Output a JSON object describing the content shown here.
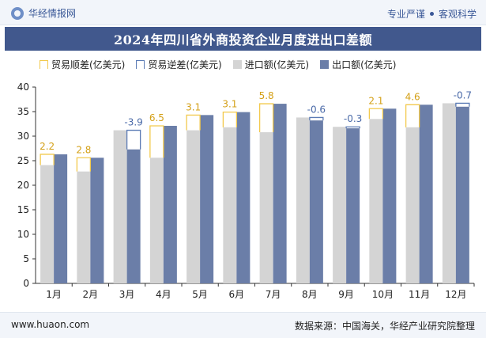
{
  "header": {
    "brand_name": "华经情报网",
    "tag_left": "专业严谨",
    "tag_right": "客观科学"
  },
  "footer": {
    "site": "www.huaon.com",
    "source": "数据来源：中国海关，华经产业研究院整理"
  },
  "colors": {
    "surplus": "#f2c94c",
    "deficit": "#5b7bb5",
    "import": "#d4d4d4",
    "export": "#6b7ea8",
    "title_bg": "#41588d"
  },
  "chart_data": {
    "type": "bar",
    "title": "2024年四川省外商投资企业月度进出口差额",
    "categories": [
      "1月",
      "2月",
      "3月",
      "4月",
      "5月",
      "6月",
      "7月",
      "8月",
      "9月",
      "10月",
      "11月",
      "12月"
    ],
    "series": [
      {
        "name": "进口额(亿美元)",
        "values": [
          24.1,
          22.8,
          31.2,
          25.6,
          31.2,
          31.8,
          30.8,
          33.8,
          31.9,
          33.5,
          31.8,
          36.7
        ]
      },
      {
        "name": "出口额(亿美元)",
        "values": [
          26.3,
          25.6,
          27.3,
          32.1,
          34.3,
          34.9,
          36.6,
          33.2,
          31.6,
          35.6,
          36.4,
          36.0
        ]
      }
    ],
    "balance": {
      "surplus_name": "贸易顺差(亿美元)",
      "deficit_name": "贸易逆差(亿美元)",
      "values": [
        2.2,
        2.8,
        -3.9,
        6.5,
        3.1,
        3.1,
        5.8,
        -0.6,
        -0.3,
        2.1,
        4.6,
        -0.7
      ]
    },
    "balance_labels": [
      "2.2",
      "2.8",
      "-3.9",
      "6.5",
      "3.1",
      "3.1",
      "5.8",
      "-0.6",
      "-0.3",
      "2.1",
      "4.6",
      "-0.7"
    ],
    "ylim": [
      0,
      40
    ],
    "yticks": [
      0,
      5,
      10,
      15,
      20,
      25,
      30,
      35,
      40
    ],
    "grid": false,
    "legend_position": "top"
  }
}
